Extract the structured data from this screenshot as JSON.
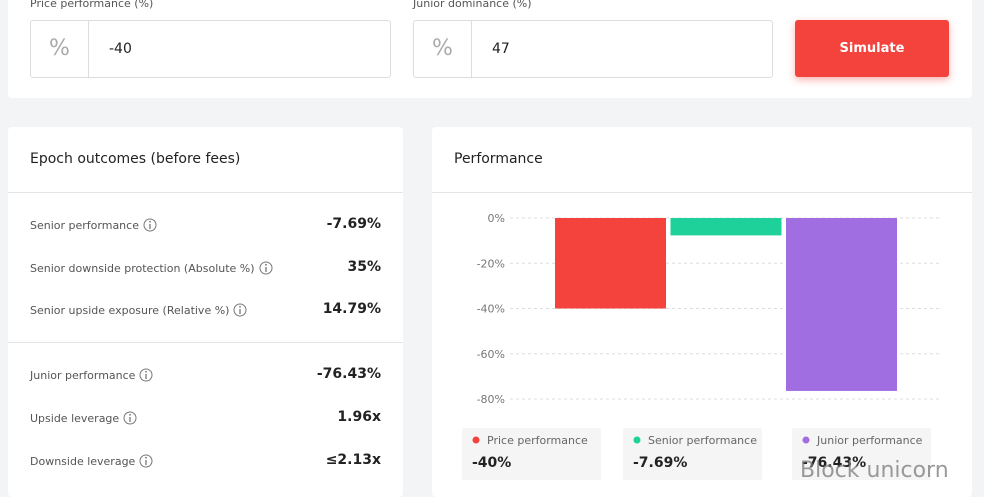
{
  "inputs": [
    {
      "label": "Price performance (%)",
      "unit": "%",
      "value": "-40"
    },
    {
      "label": "Junior dominance (%)",
      "unit": "%",
      "value": "47"
    }
  ],
  "button": "Simulate",
  "outcomes": {
    "title": "Epoch outcomes (before fees)",
    "groups": [
      [
        {
          "label": "Senior performance",
          "value": "-7.69%"
        },
        {
          "label": "Senior downside protection (Absolute %)",
          "value": "35%"
        },
        {
          "label": "Senior upside exposure (Relative %)",
          "value": "14.79%"
        }
      ],
      [
        {
          "label": "Junior performance",
          "value": "-76.43%"
        },
        {
          "label": "Upside leverage",
          "value": "1.96x"
        },
        {
          "label": "Downside leverage",
          "value": "≤2.13x"
        }
      ]
    ]
  },
  "chart_data": {
    "type": "bar",
    "title": "Performance",
    "series": [
      {
        "name": "Price performance",
        "color": "#f4433c",
        "values": [
          -40
        ],
        "value_labels": [
          "-40%"
        ]
      },
      {
        "name": "Senior performance",
        "color": "#1ed19a",
        "values": [
          -7.69
        ],
        "value_labels": [
          "-7.69%"
        ]
      },
      {
        "name": "Junior performance",
        "color": "#a06ee1",
        "values": [
          -76.43
        ],
        "value_labels": [
          "-76.43%"
        ]
      }
    ],
    "ylim": [
      -82,
      0
    ],
    "yticks": [
      {
        "value": 0,
        "label": "0%"
      },
      {
        "value": -20,
        "label": "-20%"
      },
      {
        "value": -40,
        "label": "-40%"
      },
      {
        "value": -60,
        "label": "-60%"
      },
      {
        "value": -80,
        "label": "-80%"
      }
    ],
    "grid": true
  },
  "watermark": "Block unicorn"
}
